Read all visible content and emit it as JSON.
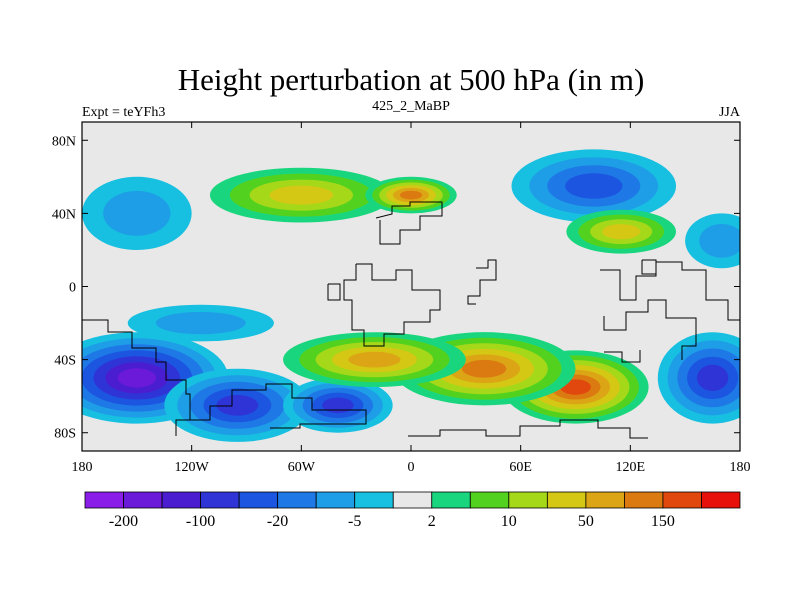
{
  "chart_data": {
    "type": "heatmap",
    "title": "Height perturbation at 500 hPa (in m)",
    "left_string": "Expt = teYFh3",
    "center_string": "425_2_MaBP",
    "right_string": "JJA",
    "x_range": [
      -180,
      180
    ],
    "y_range": [
      -90,
      90
    ],
    "x_ticks": [
      {
        "value": -180,
        "label": "180"
      },
      {
        "value": -120,
        "label": "120W"
      },
      {
        "value": -60,
        "label": "60W"
      },
      {
        "value": 0,
        "label": "0"
      },
      {
        "value": 60,
        "label": "60E"
      },
      {
        "value": 120,
        "label": "120E"
      },
      {
        "value": 180,
        "label": "180"
      }
    ],
    "y_ticks": [
      {
        "value": 80,
        "label": "80N"
      },
      {
        "value": 40,
        "label": "40N"
      },
      {
        "value": 0,
        "label": "0"
      },
      {
        "value": -40,
        "label": "40S"
      },
      {
        "value": -80,
        "label": "80S"
      }
    ],
    "colorbar": {
      "colors": [
        "#8a1de8",
        "#6a1ad8",
        "#4a1ed0",
        "#2f34d6",
        "#1b55e0",
        "#1e78e6",
        "#1e9ee6",
        "#17c0e0",
        "#e8e8e8",
        "#19d67e",
        "#52d21f",
        "#a6d81a",
        "#d4c814",
        "#dca516",
        "#dc7a12",
        "#e0480e",
        "#e8100a"
      ],
      "labels": [
        {
          "boundary": 1,
          "text": "-200"
        },
        {
          "boundary": 3,
          "text": "-100"
        },
        {
          "boundary": 5,
          "text": "-20"
        },
        {
          "boundary": 7,
          "text": "-5"
        },
        {
          "boundary": 9,
          "text": "2"
        },
        {
          "boundary": 11,
          "text": "10"
        },
        {
          "boundary": 13,
          "text": "50"
        },
        {
          "boundary": 15,
          "text": "150"
        }
      ]
    },
    "anomaly_centers": [
      {
        "lon": -150,
        "lat": -50,
        "level": 1,
        "spread_lon": 50,
        "spread_lat": 25
      },
      {
        "lon": -95,
        "lat": -65,
        "level": 3,
        "spread_lon": 40,
        "spread_lat": 20
      },
      {
        "lon": -40,
        "lat": -65,
        "level": 3,
        "spread_lon": 30,
        "spread_lat": 15
      },
      {
        "lon": 165,
        "lat": -50,
        "level": 3,
        "spread_lon": 30,
        "spread_lat": 25
      },
      {
        "lon": 90,
        "lat": -55,
        "level": 15,
        "spread_lon": 40,
        "spread_lat": 20
      },
      {
        "lon": 40,
        "lat": -45,
        "level": 14,
        "spread_lon": 50,
        "spread_lat": 20
      },
      {
        "lon": -20,
        "lat": -40,
        "level": 13,
        "spread_lon": 50,
        "spread_lat": 15
      },
      {
        "lon": -115,
        "lat": -20,
        "level": 6,
        "spread_lon": 40,
        "spread_lat": 10
      },
      {
        "lon": -60,
        "lat": 50,
        "level": 12,
        "spread_lon": 50,
        "spread_lat": 15
      },
      {
        "lon": 0,
        "lat": 50,
        "level": 14,
        "spread_lon": 25,
        "spread_lat": 10
      },
      {
        "lon": 100,
        "lat": 55,
        "level": 4,
        "spread_lon": 45,
        "spread_lat": 20
      },
      {
        "lon": 115,
        "lat": 30,
        "level": 12,
        "spread_lon": 30,
        "spread_lat": 12
      },
      {
        "lon": -150,
        "lat": 40,
        "level": 6,
        "spread_lon": 30,
        "spread_lat": 20
      },
      {
        "lon": 170,
        "lat": 25,
        "level": 6,
        "spread_lon": 20,
        "spread_lat": 15
      }
    ]
  }
}
